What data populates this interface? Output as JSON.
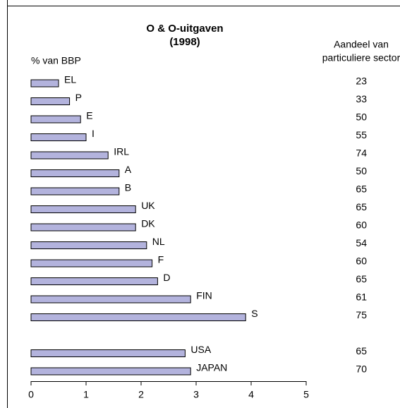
{
  "chart_data": {
    "type": "hbar",
    "title": "O & O-uitgaven",
    "subtitle": "(1998)",
    "x_label": "% van BBP",
    "right_header": [
      "Aandeel van",
      "particuliere sector"
    ],
    "categories": [
      "EL",
      "P",
      "E",
      "I",
      "IRL",
      "A",
      "B",
      "UK",
      "DK",
      "NL",
      "F",
      "D",
      "FIN",
      "S",
      null,
      "USA",
      "JAPAN"
    ],
    "values": [
      0.5,
      0.7,
      0.9,
      1.0,
      1.4,
      1.6,
      1.6,
      1.9,
      1.9,
      2.1,
      2.2,
      2.3,
      2.9,
      3.9,
      null,
      2.8,
      2.9
    ],
    "shares": [
      23,
      33,
      50,
      55,
      74,
      50,
      65,
      65,
      60,
      54,
      60,
      65,
      61,
      75,
      null,
      65,
      70
    ],
    "color": "#b3b3dd",
    "xlim": [
      0,
      5
    ],
    "xticks": [
      0,
      1,
      2,
      3,
      4,
      5
    ]
  }
}
